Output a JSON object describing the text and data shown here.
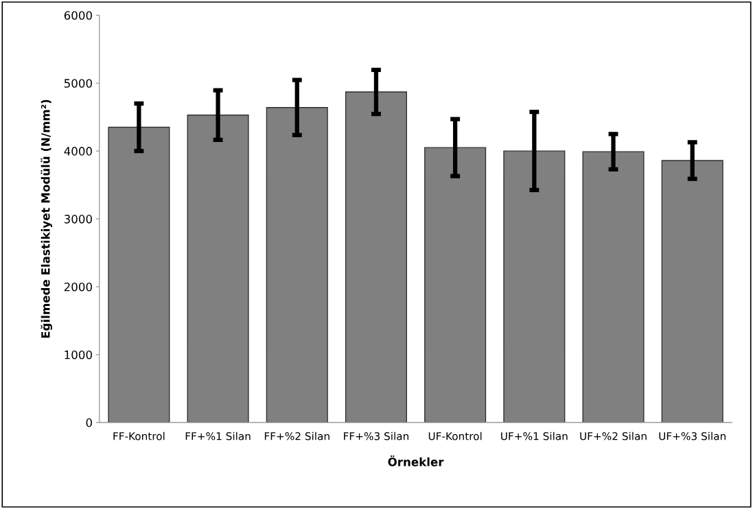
{
  "chart_data": {
    "type": "bar",
    "xlabel": "Örnekler",
    "ylabel": "Eğilmede Elastikiyet Modülü (N/mm²)",
    "categories": [
      "FF-Kontrol",
      "FF+%1 Silan",
      "FF+%2 Silan",
      "FF+%3 Silan",
      "UF-Kontrol",
      "UF+%1 Silan",
      "UF+%2 Silan",
      "UF+%3 Silan"
    ],
    "values": [
      4350,
      4530,
      4640,
      4870,
      4050,
      4000,
      3990,
      3860
    ],
    "errors": [
      350,
      365,
      405,
      325,
      420,
      575,
      260,
      270
    ],
    "color": "#808080",
    "ylim": [
      0,
      6000
    ],
    "yticks": [
      0,
      1000,
      2000,
      3000,
      4000,
      5000,
      6000
    ],
    "grid": false
  }
}
